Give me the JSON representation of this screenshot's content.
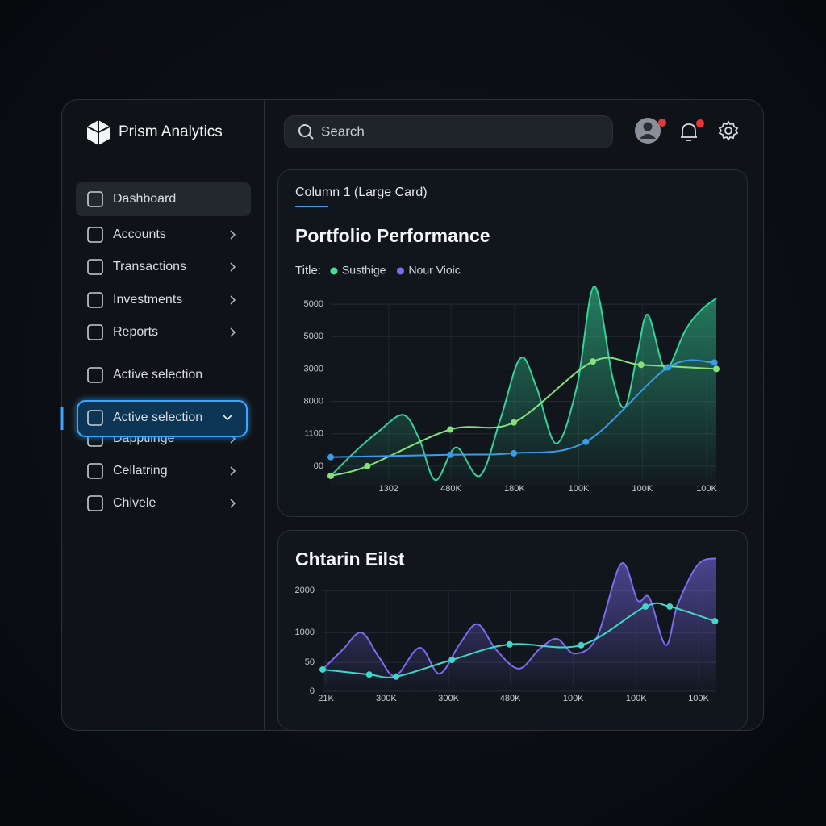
{
  "sidebar": {
    "brand": "Prism Analytics",
    "nav": [
      {
        "label": "Dashboard",
        "state": "active"
      },
      {
        "label": "Accounts",
        "chevron": "right"
      },
      {
        "label": "Transactions",
        "chevron": "right"
      },
      {
        "label": "Investments",
        "chevron": "right"
      },
      {
        "label": "Reports",
        "chevron": "right"
      },
      {
        "label": "Active selection"
      },
      {
        "label": "Active selection",
        "state": "highlighted",
        "chevron": "down"
      },
      {
        "label": "Dapptiinge",
        "chevron": "right"
      },
      {
        "label": "Cellatring",
        "chevron": "right"
      },
      {
        "label": "Chivele",
        "chevron": "right"
      }
    ]
  },
  "topbar": {
    "search_placeholder": "Search"
  },
  "cards": [
    {
      "label": "Column 1 (Large Card)"
    }
  ],
  "charts": [
    {
      "type": "line",
      "title": "Portfolio Performance",
      "legend_title": "Title:",
      "legend": [
        {
          "name": "Susthige",
          "color": "#3ee08f"
        },
        {
          "name": "Nour Vioic",
          "color": "#7a6cf0"
        }
      ],
      "xlim": [
        0,
        6
      ],
      "ylim": [
        -0.6,
        5.6
      ],
      "grid": true,
      "xticks": [
        {
          "value": 0.9,
          "label": "1302"
        },
        {
          "value": 1.87,
          "label": "480K"
        },
        {
          "value": 2.86,
          "label": "180K"
        },
        {
          "value": 3.86,
          "label": "100K"
        },
        {
          "value": 4.85,
          "label": "100K"
        },
        {
          "value": 5.85,
          "label": "100K"
        }
      ],
      "yticks": [
        {
          "value": 0,
          "label": "00"
        },
        {
          "value": 1,
          "label": "1100"
        },
        {
          "value": 2,
          "label": "8000"
        },
        {
          "value": 3,
          "label": "3000"
        },
        {
          "value": 4,
          "label": "5000"
        },
        {
          "value": 5,
          "label": "5000"
        }
      ],
      "series": [
        {
          "color": "#35d39a",
          "fill": true,
          "x": [
            0,
            0.38,
            0.75,
            1.13,
            1.38,
            1.63,
            1.95,
            2.32,
            2.64,
            2.95,
            3.2,
            3.51,
            3.83,
            4.1,
            4.39,
            4.58,
            4.77,
            4.93,
            5.15,
            5.27,
            5.52,
            5.77,
            6
          ],
          "values": [
            -0.3,
            0.45,
            1.08,
            1.58,
            0.83,
            -0.43,
            0.58,
            -0.3,
            1.45,
            3.33,
            2.45,
            0.7,
            2.45,
            5.55,
            2.7,
            1.83,
            3.45,
            4.68,
            3.2,
            3.08,
            4.2,
            4.83,
            5.18
          ]
        },
        {
          "color": "#86e07c",
          "markers": true,
          "x": [
            0,
            0.57,
            1.86,
            2.85,
            4.08,
            4.83,
            6
          ],
          "values": [
            -0.3,
            0,
            1.13,
            1.35,
            3.23,
            3.13,
            3.0
          ]
        },
        {
          "color": "#3b9be8",
          "markers": true,
          "x": [
            0,
            1.86,
            2.85,
            3.97,
            5.25,
            5.97
          ],
          "values": [
            0.28,
            0.35,
            0.4,
            0.75,
            3.05,
            3.2
          ]
        }
      ]
    },
    {
      "type": "line",
      "title": "Chtarin Eilst",
      "xlim": [
        0,
        6
      ],
      "ylim": [
        0,
        3.2
      ],
      "grid": true,
      "xticks": [
        {
          "value": 0.05,
          "label": "21K"
        },
        {
          "value": 0.97,
          "label": "300K"
        },
        {
          "value": 1.92,
          "label": "300K"
        },
        {
          "value": 2.86,
          "label": "480K"
        },
        {
          "value": 3.82,
          "label": "100K"
        },
        {
          "value": 4.78,
          "label": "100K"
        },
        {
          "value": 5.73,
          "label": "100K"
        }
      ],
      "yticks": [
        0,
        {
          "value": 0.69,
          "label": "50"
        },
        {
          "value": 1.4,
          "label": "1000"
        },
        {
          "value": 2.4,
          "label": "2000"
        }
      ],
      "series": [
        {
          "color": "#7b6cf0",
          "fill": true,
          "x": [
            0,
            0.31,
            0.59,
            0.86,
            1.11,
            1.48,
            1.78,
            2.09,
            2.36,
            2.64,
            2.99,
            3.3,
            3.57,
            3.84,
            4.18,
            4.55,
            4.8,
            4.98,
            5.23,
            5.41,
            5.72,
            6
          ],
          "values": [
            0.52,
            1.0,
            1.4,
            0.81,
            0.37,
            1.04,
            0.42,
            1.13,
            1.6,
            1.0,
            0.54,
            1.0,
            1.25,
            0.9,
            1.29,
            3.04,
            2.17,
            2.23,
            1.1,
            2.06,
            3.02,
            3.17
          ]
        },
        {
          "color": "#3fd8c8",
          "markers": true,
          "x": [
            0,
            0.71,
            1.12,
            1.97,
            2.85,
            3.94,
            4.92,
            5.29,
            5.98
          ],
          "values": [
            0.52,
            0.4,
            0.35,
            0.75,
            1.12,
            1.1,
            2.02,
            2.02,
            1.67
          ]
        }
      ]
    }
  ]
}
